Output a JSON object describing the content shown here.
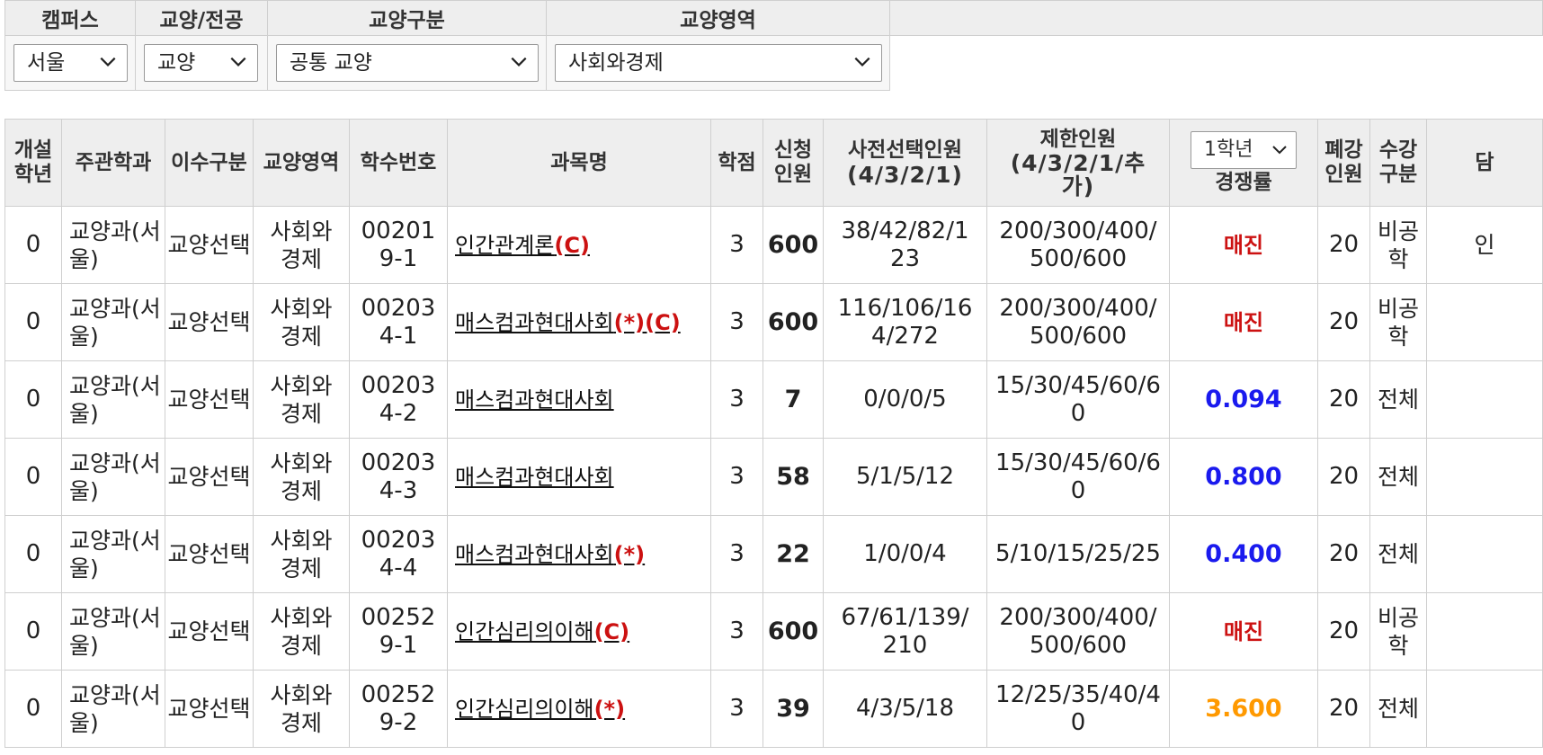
{
  "filters": {
    "campus": {
      "label": "캠퍼스",
      "value": "서울"
    },
    "type": {
      "label": "교양/전공",
      "value": "교양"
    },
    "category": {
      "label": "교양구분",
      "value": "공통 교양"
    },
    "area": {
      "label": "교양영역",
      "value": "사회와경제"
    }
  },
  "table": {
    "headers": {
      "grade_year": "개설학년",
      "department": "주관학과",
      "completion": "이수구분",
      "area": "교양영역",
      "course_no": "학수번호",
      "course_name": "과목명",
      "credits": "학점",
      "applicants": "신청인원",
      "preselect": "사전선택인원",
      "preselect_sub": "(4/3/2/1)",
      "limit": "제한인원",
      "limit_sub": "(4/3/2/1/추가)",
      "grade_select": "1학년",
      "competition": "경쟁률",
      "cancel": "폐강인원",
      "enroll_type": "수강구분",
      "next": "담"
    },
    "rows": [
      {
        "year": "0",
        "dept": "교양과(서울)",
        "completion": "교양선택",
        "area": "사회와경제",
        "no": "002019-1",
        "name": "인간관계론",
        "tags": "(C)",
        "credits": "3",
        "applicants": "600",
        "preselect": "38/42/82/123",
        "limit": "200/300/400/500/600",
        "rate": "매진",
        "cancel": "20",
        "enroll": "비공학",
        "next": "인"
      },
      {
        "year": "0",
        "dept": "교양과(서울)",
        "completion": "교양선택",
        "area": "사회와경제",
        "no": "002034-1",
        "name": "매스컴과현대사회",
        "tags": "(*)(C)",
        "credits": "3",
        "applicants": "600",
        "preselect": "116/106/164/272",
        "limit": "200/300/400/500/600",
        "rate": "매진",
        "cancel": "20",
        "enroll": "비공학",
        "next": ""
      },
      {
        "year": "0",
        "dept": "교양과(서울)",
        "completion": "교양선택",
        "area": "사회와경제",
        "no": "002034-2",
        "name": "매스컴과현대사회",
        "tags": "",
        "credits": "3",
        "applicants": "7",
        "preselect": "0/0/0/5",
        "limit": "15/30/45/60/60",
        "rate": "0.094",
        "cancel": "20",
        "enroll": "전체",
        "next": ""
      },
      {
        "year": "0",
        "dept": "교양과(서울)",
        "completion": "교양선택",
        "area": "사회와경제",
        "no": "002034-3",
        "name": "매스컴과현대사회",
        "tags": "",
        "credits": "3",
        "applicants": "58",
        "preselect": "5/1/5/12",
        "limit": "15/30/45/60/60",
        "rate": "0.800",
        "cancel": "20",
        "enroll": "전체",
        "next": ""
      },
      {
        "year": "0",
        "dept": "교양과(서울)",
        "completion": "교양선택",
        "area": "사회와경제",
        "no": "002034-4",
        "name": "매스컴과현대사회",
        "tags": "(*)",
        "credits": "3",
        "applicants": "22",
        "preselect": "1/0/0/4",
        "limit": "5/10/15/25/25",
        "rate": "0.400",
        "cancel": "20",
        "enroll": "전체",
        "next": ""
      },
      {
        "year": "0",
        "dept": "교양과(서울)",
        "completion": "교양선택",
        "area": "사회와경제",
        "no": "002529-1",
        "name": "인간심리의이해",
        "tags": "(C)",
        "credits": "3",
        "applicants": "600",
        "preselect": "67/61/139/210",
        "limit": "200/300/400/500/600",
        "rate": "매진",
        "cancel": "20",
        "enroll": "비공학",
        "next": ""
      },
      {
        "year": "0",
        "dept": "교양과(서울)",
        "completion": "교양선택",
        "area": "사회와경제",
        "no": "002529-2",
        "name": "인간심리의이해",
        "tags": "(*)",
        "credits": "3",
        "applicants": "39",
        "preselect": "4/3/5/18",
        "limit": "12/25/35/40/40",
        "rate": "3.600",
        "cancel": "20",
        "enroll": "전체",
        "next": ""
      }
    ]
  },
  "colors": {
    "sold_out": "#cc1111",
    "low_rate": "#1a1aee",
    "high_rate": "#ff9900",
    "tag": "#cc1111",
    "header_bg": "#eeeeee",
    "border": "#cfcfcf"
  },
  "icons": {
    "dropdown": "chevron-down-icon"
  }
}
